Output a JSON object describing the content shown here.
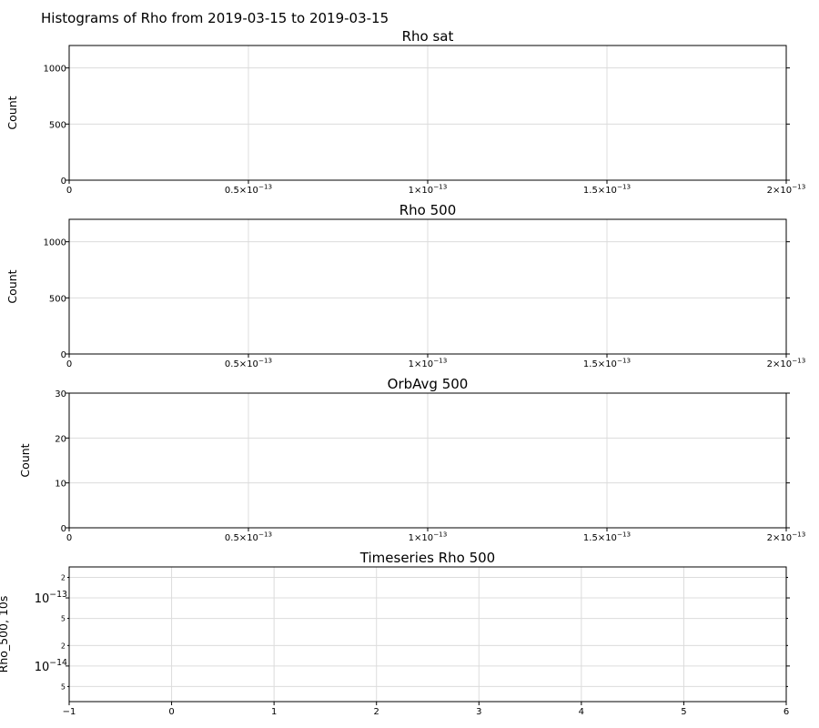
{
  "figure": {
    "title": "Histograms of Rho from 2019-03-15 to 2019-03-15"
  },
  "chart_data": [
    {
      "type": "bar",
      "title": "Rho sat",
      "xlabel": "",
      "ylabel": "Count",
      "xlim": [
        0,
        2e-13
      ],
      "ylim": [
        0,
        1200
      ],
      "x_ticks": [
        {
          "value": 0,
          "mant": "0",
          "exp": ""
        },
        {
          "value": 5e-14,
          "mant": "0.5×10",
          "exp": "−13"
        },
        {
          "value": 1e-13,
          "mant": "1×10",
          "exp": "−13"
        },
        {
          "value": 1.5e-13,
          "mant": "1.5×10",
          "exp": "−13"
        },
        {
          "value": 2e-13,
          "mant": "2×10",
          "exp": "−13"
        }
      ],
      "y_ticks": [
        {
          "value": 0,
          "label": "0"
        },
        {
          "value": 500,
          "label": "500"
        },
        {
          "value": 1000,
          "label": "1000"
        }
      ],
      "grid": true,
      "series": [
        {
          "values": []
        }
      ]
    },
    {
      "type": "bar",
      "title": "Rho 500",
      "xlabel": "",
      "ylabel": "Count",
      "xlim": [
        0,
        2e-13
      ],
      "ylim": [
        0,
        1200
      ],
      "x_ticks": [
        {
          "value": 0,
          "mant": "0",
          "exp": ""
        },
        {
          "value": 5e-14,
          "mant": "0.5×10",
          "exp": "−13"
        },
        {
          "value": 1e-13,
          "mant": "1×10",
          "exp": "−13"
        },
        {
          "value": 1.5e-13,
          "mant": "1.5×10",
          "exp": "−13"
        },
        {
          "value": 2e-13,
          "mant": "2×10",
          "exp": "−13"
        }
      ],
      "y_ticks": [
        {
          "value": 0,
          "label": "0"
        },
        {
          "value": 500,
          "label": "500"
        },
        {
          "value": 1000,
          "label": "1000"
        }
      ],
      "grid": true,
      "series": [
        {
          "values": []
        }
      ]
    },
    {
      "type": "bar",
      "title": "OrbAvg 500",
      "xlabel": "",
      "ylabel": "Count",
      "xlim": [
        0,
        2e-13
      ],
      "ylim": [
        0,
        30
      ],
      "x_ticks": [
        {
          "value": 0,
          "mant": "0",
          "exp": ""
        },
        {
          "value": 5e-14,
          "mant": "0.5×10",
          "exp": "−13"
        },
        {
          "value": 1e-13,
          "mant": "1×10",
          "exp": "−13"
        },
        {
          "value": 1.5e-13,
          "mant": "1.5×10",
          "exp": "−13"
        },
        {
          "value": 2e-13,
          "mant": "2×10",
          "exp": "−13"
        }
      ],
      "y_ticks": [
        {
          "value": 0,
          "label": "0"
        },
        {
          "value": 10,
          "label": "10"
        },
        {
          "value": 20,
          "label": "20"
        },
        {
          "value": 30,
          "label": "30"
        }
      ],
      "grid": true,
      "series": [
        {
          "values": []
        }
      ]
    },
    {
      "type": "line",
      "title": "Timeseries Rho 500",
      "xlabel": "",
      "ylabel": "Rho_500, 10s",
      "xlim": [
        -1,
        6
      ],
      "ylim": [
        3e-15,
        2.85e-13
      ],
      "y_scale": "log",
      "x_ticks": [
        {
          "value": -1,
          "label": "−1"
        },
        {
          "value": 0,
          "label": "0"
        },
        {
          "value": 1,
          "label": "1"
        },
        {
          "value": 2,
          "label": "2"
        },
        {
          "value": 3,
          "label": "3"
        },
        {
          "value": 4,
          "label": "4"
        },
        {
          "value": 5,
          "label": "5"
        },
        {
          "value": 6,
          "label": "6"
        }
      ],
      "y_major_ticks": [
        {
          "value": 1e-14,
          "mant": "10",
          "exp": "−14"
        },
        {
          "value": 1e-13,
          "mant": "10",
          "exp": "−13"
        }
      ],
      "y_minor_ticks": [
        {
          "value": 5e-15,
          "label": "5"
        },
        {
          "value": 2e-14,
          "label": "2"
        },
        {
          "value": 5e-14,
          "label": "5"
        },
        {
          "value": 2e-13,
          "label": "2"
        }
      ],
      "grid": true,
      "series": [
        {
          "x": [],
          "y": []
        }
      ]
    }
  ]
}
